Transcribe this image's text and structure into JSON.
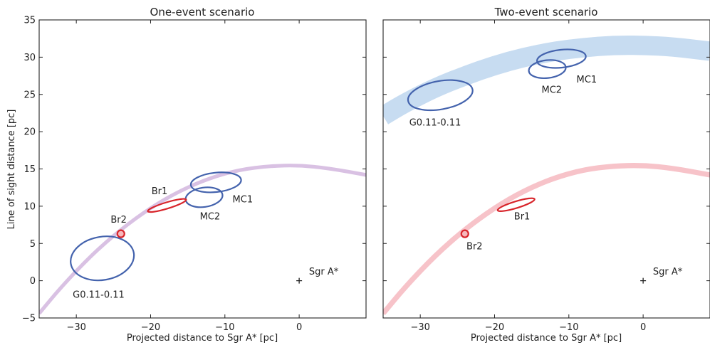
{
  "chart_data": [
    {
      "type": "scatter",
      "title": "One-event scenario",
      "xlabel": "Projected distance to Sgr A* [pc]",
      "ylabel": "Line of sight distance [pc]",
      "xlim": [
        -35,
        9
      ],
      "ylim": [
        -5,
        35
      ],
      "xticks": [
        -30,
        -20,
        -10,
        0
      ],
      "yticks": [
        -5,
        0,
        5,
        10,
        15,
        20,
        25,
        30,
        35
      ],
      "bands": [
        {
          "color": "#d9c1e3",
          "path": [
            [
              -35,
              -4.4
            ],
            [
              -32,
              -0.8
            ],
            [
              -28,
              3.4
            ],
            [
              -24,
              6.9
            ],
            [
              -20,
              9.8
            ],
            [
              -16,
              12.1
            ],
            [
              -12,
              13.8
            ],
            [
              -8,
              14.9
            ],
            [
              -4,
              15.4
            ],
            [
              0,
              15.5
            ],
            [
              4,
              15.1
            ],
            [
              9,
              14.2
            ]
          ],
          "band_width_pc": 0.5
        }
      ],
      "ellipses": [
        {
          "label": "G0.11-0.11",
          "cx": -26.5,
          "cy": 3.0,
          "rx": 4.3,
          "ry": 2.9,
          "angle": -10,
          "color": "#4463ad",
          "label_x": -27,
          "label_y": -2.3
        },
        {
          "label": "MC2",
          "cx": -12.8,
          "cy": 11.2,
          "rx": 2.5,
          "ry": 1.3,
          "angle": -8,
          "color": "#4463ad",
          "label_x": -12,
          "label_y": 8.2
        },
        {
          "label": "MC1",
          "cx": -11.2,
          "cy": 13.2,
          "rx": 3.4,
          "ry": 1.3,
          "angle": -6,
          "color": "#4463ad",
          "label_x": -7.6,
          "label_y": 10.5
        }
      ],
      "red_features": [
        {
          "label": "Br1",
          "shape": "ellipse",
          "cx": -17.8,
          "cy": 10.1,
          "rx": 2.7,
          "ry": 0.42,
          "angle": 17,
          "color": "#d8252b",
          "label_x": -18.8,
          "label_y": 11.6
        },
        {
          "label": "Br2",
          "shape": "circle",
          "cx": -24,
          "cy": 6.3,
          "r": 0.45,
          "color": "#d8252b",
          "fill": "#f6b8bc",
          "label_x": -24.3,
          "label_y": 7.8
        }
      ],
      "markers": [
        {
          "label": "Sgr A*",
          "x": 0,
          "y": 0,
          "label_x": 3.3,
          "label_y": 0.8
        }
      ]
    },
    {
      "type": "scatter",
      "title": "Two-event scenario",
      "xlabel": "Projected distance to Sgr A* [pc]",
      "ylabel": "",
      "xlim": [
        -35,
        9
      ],
      "ylim": [
        -5,
        35
      ],
      "xticks": [
        -30,
        -20,
        -10,
        0
      ],
      "yticks": [
        -5,
        0,
        5,
        10,
        15,
        20,
        25,
        30,
        35
      ],
      "bands": [
        {
          "color": "#c7dcf1",
          "path": [
            [
              -35,
              22.1
            ],
            [
              -32,
              23.9
            ],
            [
              -28,
              25.9
            ],
            [
              -24,
              27.5
            ],
            [
              -20,
              28.9
            ],
            [
              -16,
              30.0
            ],
            [
              -12,
              30.8
            ],
            [
              -8,
              31.3
            ],
            [
              -4,
              31.6
            ],
            [
              0,
              31.6
            ],
            [
              4,
              31.4
            ],
            [
              9,
              30.8
            ]
          ],
          "band_width_pc": 2.6
        },
        {
          "color": "#f7c3c9",
          "path": [
            [
              -35,
              -4.4
            ],
            [
              -32,
              -0.8
            ],
            [
              -28,
              3.4
            ],
            [
              -24,
              6.9
            ],
            [
              -20,
              9.8
            ],
            [
              -16,
              12.1
            ],
            [
              -12,
              13.8
            ],
            [
              -8,
              14.9
            ],
            [
              -4,
              15.4
            ],
            [
              0,
              15.5
            ],
            [
              4,
              15.1
            ],
            [
              9,
              14.2
            ]
          ],
          "band_width_pc": 0.7
        }
      ],
      "ellipses": [
        {
          "label": "G0.11-0.11",
          "cx": -27.3,
          "cy": 24.9,
          "rx": 4.4,
          "ry": 1.9,
          "angle": -10,
          "color": "#4463ad",
          "label_x": -28,
          "label_y": 20.8
        },
        {
          "label": "MC2",
          "cx": -12.9,
          "cy": 28.4,
          "rx": 2.5,
          "ry": 1.2,
          "angle": -6,
          "color": "#4463ad",
          "label_x": -12.3,
          "label_y": 25.2
        },
        {
          "label": "MC1",
          "cx": -11.0,
          "cy": 29.8,
          "rx": 3.3,
          "ry": 1.2,
          "angle": -6,
          "color": "#4463ad",
          "label_x": -7.6,
          "label_y": 26.6
        }
      ],
      "red_features": [
        {
          "label": "Br1",
          "shape": "ellipse",
          "cx": -17.1,
          "cy": 10.2,
          "rx": 2.6,
          "ry": 0.45,
          "angle": 17,
          "color": "#d8252b",
          "label_x": -16.3,
          "label_y": 8.2
        },
        {
          "label": "Br2",
          "shape": "circle",
          "cx": -24,
          "cy": 6.3,
          "r": 0.45,
          "color": "#d8252b",
          "fill": "#f6b8bc",
          "label_x": -22.7,
          "label_y": 4.2
        }
      ],
      "markers": [
        {
          "label": "Sgr A*",
          "x": 0,
          "y": 0,
          "label_x": 3.3,
          "label_y": 0.8
        }
      ]
    }
  ]
}
